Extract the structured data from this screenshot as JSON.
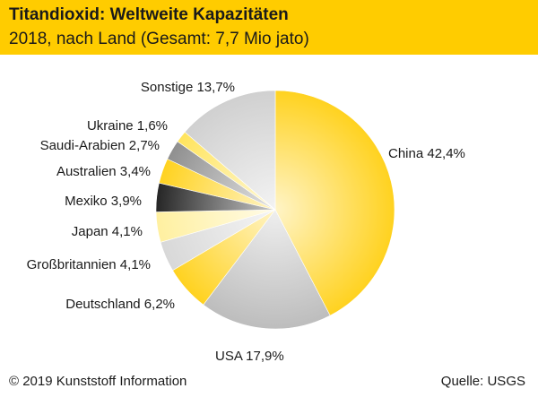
{
  "header": {
    "title": "Titandioxid: Weltweite Kapazitäten",
    "subtitle": "2018, nach Land (Gesamt: 7,7 Mio jato)"
  },
  "footer": {
    "copyright": "© 2019 Kunststoff Information",
    "source": "Quelle: USGS"
  },
  "colors": {
    "header_bg": "#ffcc00"
  },
  "chart_data": {
    "type": "pie",
    "title": "Titandioxid: Weltweite Kapazitäten",
    "subtitle": "2018, nach Land (Gesamt: 7,7 Mio jato)",
    "unit": "%",
    "slices": [
      {
        "name": "China",
        "value": 42.4,
        "label": "China 42,4%",
        "color": "#ffd21f"
      },
      {
        "name": "USA",
        "value": 17.9,
        "label": "USA 17,9%",
        "color": "#bdbdbd"
      },
      {
        "name": "Deutschland",
        "value": 6.2,
        "label": "Deutschland 6,2%",
        "color": "#ffd21f"
      },
      {
        "name": "Großbritannien",
        "value": 4.1,
        "label": "Großbritannien 4,1%",
        "color": "#d8d8d8"
      },
      {
        "name": "Japan",
        "value": 4.1,
        "label": "Japan 4,1%",
        "color": "#fff0a0"
      },
      {
        "name": "Mexiko",
        "value": 3.9,
        "label": "Mexiko 3,9%",
        "color": "#262626"
      },
      {
        "name": "Australien",
        "value": 3.4,
        "label": "Australien 3,4%",
        "color": "#ffd21f"
      },
      {
        "name": "Saudi-Arabien",
        "value": 2.7,
        "label": "Saudi-Arabien 2,7%",
        "color": "#8f8f8f"
      },
      {
        "name": "Ukraine",
        "value": 1.6,
        "label": "Ukraine 1,6%",
        "color": "#ffe45c"
      },
      {
        "name": "Sonstige",
        "value": 13.7,
        "label": "Sonstige 13,7%",
        "color": "#d0d0d0"
      }
    ]
  }
}
